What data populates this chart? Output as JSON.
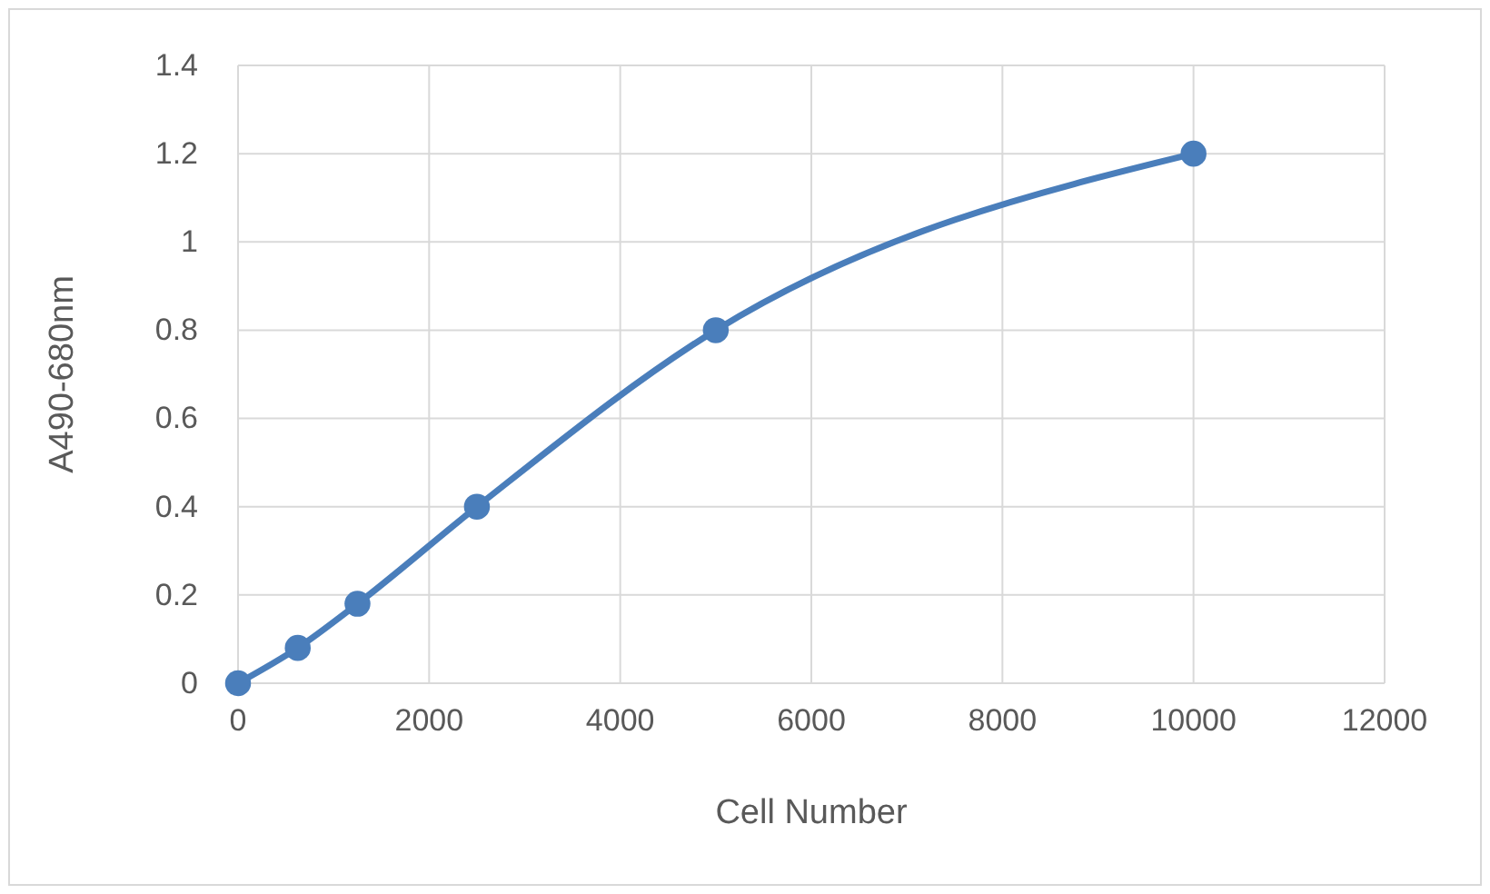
{
  "chart_data": {
    "type": "line",
    "xlabel": "Cell Number",
    "ylabel": "A490-680nm",
    "x": [
      0,
      625,
      1250,
      2500,
      5000,
      10000
    ],
    "series": [
      {
        "color": "#4a7ebb",
        "values": [
          0,
          0.08,
          0.18,
          0.4,
          0.8,
          1.2
        ]
      }
    ],
    "xlim": [
      0,
      12000
    ],
    "xticks": [
      0,
      2000,
      4000,
      6000,
      8000,
      10000,
      12000
    ],
    "ylim": [
      0,
      1.4
    ],
    "yticks": [
      0,
      0.2,
      0.4,
      0.6,
      0.8,
      1,
      1.2,
      1.4
    ],
    "grid": true,
    "marker": "circle",
    "line_style": "solid"
  }
}
